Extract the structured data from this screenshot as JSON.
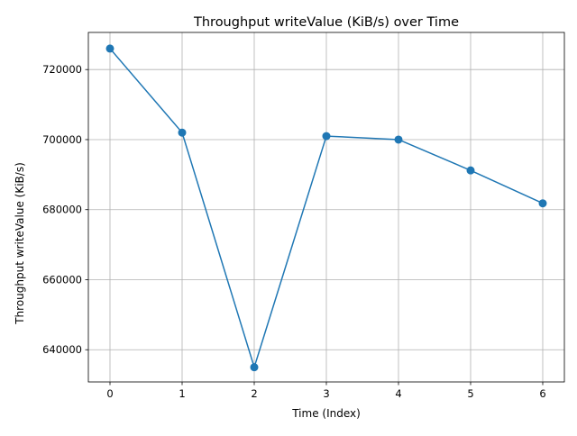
{
  "chart_data": {
    "type": "line",
    "title": "Throughput writeValue (KiB/s) over Time",
    "xlabel": "Time (Index)",
    "ylabel": "Throughput writeValue (KiB/s)",
    "x": [
      0,
      1,
      2,
      3,
      4,
      5,
      6
    ],
    "series": [
      {
        "values": [
          726000,
          702000,
          635000,
          701000,
          700000,
          691200,
          681800
        ]
      }
    ],
    "xlim": [
      -0.3,
      6.3
    ],
    "ylim": [
      630800,
      730600
    ],
    "xticks": [
      0,
      1,
      2,
      3,
      4,
      5,
      6
    ],
    "yticks": [
      640000,
      660000,
      680000,
      700000,
      720000
    ],
    "grid": true,
    "line_color": "#1f77b4",
    "marker": "circle"
  }
}
